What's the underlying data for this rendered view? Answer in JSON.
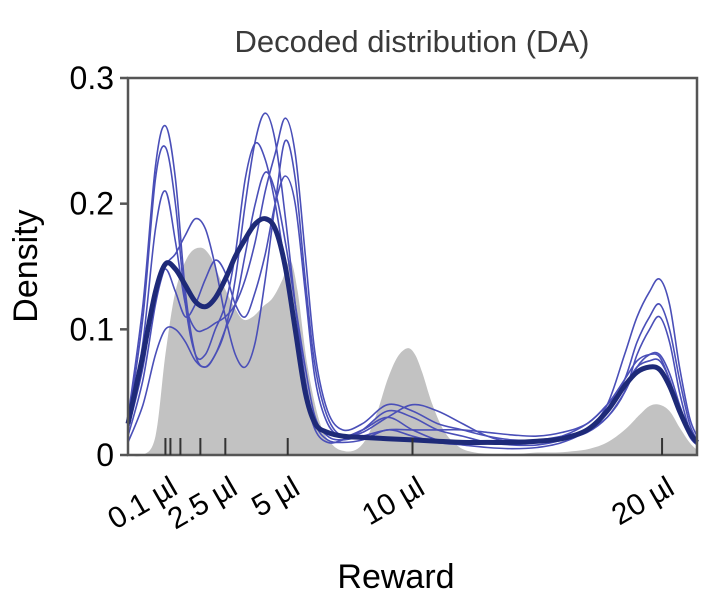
{
  "chart_data": {
    "type": "area",
    "title": "Decoded distribution (DA)",
    "xlabel": "Reward",
    "ylabel": "Density",
    "ylim": [
      0,
      0.3
    ],
    "yticks": [
      "0",
      "0.1",
      "0.2",
      "0.3"
    ],
    "xlim": [
      -1.4,
      21.4
    ],
    "xtick_labels": [
      {
        "label": "0.1 µl",
        "value": 0.1
      },
      {
        "label": "2.5 µl",
        "value": 2.5
      },
      {
        "label": "5 µl",
        "value": 5
      },
      {
        "label": "10 µl",
        "value": 10
      },
      {
        "label": "20 µl",
        "value": 20
      }
    ],
    "reward_ticks": [
      0.1,
      0.3,
      0.7,
      1.5,
      2.5,
      5,
      10,
      20
    ],
    "colors": {
      "reference_fill": "#c2c2c2",
      "thin_lines": "#4a4fb8",
      "mean_line": "#1e2a78",
      "axes": "#555555"
    },
    "series": [
      {
        "style": "reference-fill",
        "x": [
          -1.4,
          -0.8,
          -0.3,
          0.1,
          0.5,
          1.0,
          1.5,
          1.9,
          2.3,
          2.8,
          3.2,
          3.6,
          4.0,
          4.4,
          4.8,
          5.1,
          5.4,
          5.8,
          6.3,
          6.8,
          7.3,
          7.8,
          8.2,
          8.6,
          9.0,
          9.4,
          9.8,
          10.1,
          10.4,
          10.8,
          11.3,
          11.9,
          12.5,
          13.1,
          13.7,
          14.3,
          15.0,
          15.7,
          16.4,
          17.1,
          17.8,
          18.5,
          19.1,
          19.5,
          19.9,
          20.3,
          20.7,
          21.1,
          21.4
        ],
        "values": [
          0.0,
          0.0,
          0.015,
          0.08,
          0.13,
          0.158,
          0.165,
          0.158,
          0.14,
          0.12,
          0.108,
          0.11,
          0.118,
          0.125,
          0.14,
          0.155,
          0.13,
          0.07,
          0.025,
          0.008,
          0.003,
          0.005,
          0.015,
          0.035,
          0.06,
          0.078,
          0.085,
          0.08,
          0.065,
          0.04,
          0.018,
          0.006,
          0.002,
          0.001,
          0.001,
          0.001,
          0.002,
          0.002,
          0.003,
          0.005,
          0.01,
          0.02,
          0.032,
          0.039,
          0.04,
          0.035,
          0.022,
          0.01,
          0.004
        ]
      },
      {
        "style": "thin",
        "x": [
          -1.4,
          -0.8,
          -0.3,
          0.1,
          0.5,
          0.9,
          1.3,
          1.7,
          2.1,
          2.5,
          2.9,
          3.3,
          3.7,
          4.1,
          4.5,
          4.9,
          5.3,
          5.7,
          6.1,
          6.6,
          7.2,
          8.0,
          9.0,
          10.0,
          11.0,
          12.0,
          13.0,
          14.0,
          15.0,
          16.0,
          17.0,
          17.8,
          18.5,
          19.0,
          19.5,
          19.9,
          20.3,
          20.7,
          21.1,
          21.4
        ],
        "values": [
          0.03,
          0.12,
          0.23,
          0.262,
          0.22,
          0.13,
          0.08,
          0.07,
          0.08,
          0.1,
          0.14,
          0.2,
          0.25,
          0.272,
          0.25,
          0.19,
          0.12,
          0.06,
          0.025,
          0.012,
          0.01,
          0.012,
          0.02,
          0.015,
          0.01,
          0.008,
          0.006,
          0.005,
          0.006,
          0.01,
          0.02,
          0.04,
          0.08,
          0.11,
          0.13,
          0.14,
          0.12,
          0.07,
          0.03,
          0.015
        ]
      },
      {
        "style": "thin",
        "x": [
          -1.4,
          -0.8,
          -0.3,
          0.1,
          0.5,
          0.9,
          1.3,
          1.7,
          2.1,
          2.5,
          2.9,
          3.3,
          3.7,
          4.1,
          4.5,
          4.9,
          5.3,
          5.7,
          6.1,
          6.6,
          7.2,
          8.0,
          9.0,
          10.0,
          11.0,
          12.0,
          13.0,
          14.0,
          15.0,
          16.0,
          17.0,
          17.8,
          18.5,
          19.0,
          19.5,
          19.9,
          20.3,
          20.7,
          21.1,
          21.4
        ],
        "values": [
          0.025,
          0.11,
          0.22,
          0.245,
          0.2,
          0.12,
          0.08,
          0.08,
          0.1,
          0.12,
          0.16,
          0.22,
          0.248,
          0.235,
          0.2,
          0.15,
          0.1,
          0.05,
          0.02,
          0.01,
          0.012,
          0.02,
          0.035,
          0.03,
          0.02,
          0.015,
          0.01,
          0.008,
          0.008,
          0.012,
          0.02,
          0.035,
          0.06,
          0.09,
          0.11,
          0.12,
          0.1,
          0.06,
          0.025,
          0.012
        ]
      },
      {
        "style": "thin",
        "x": [
          -1.4,
          -0.8,
          -0.3,
          0.1,
          0.5,
          0.9,
          1.3,
          1.7,
          2.1,
          2.5,
          2.9,
          3.3,
          3.7,
          4.1,
          4.5,
          4.9,
          5.3,
          5.7,
          6.1,
          6.6,
          7.2,
          8.0,
          9.0,
          10.0,
          11.0,
          12.0,
          13.0,
          14.0,
          15.0,
          16.0,
          17.0,
          17.8,
          18.5,
          19.0,
          19.5,
          19.9,
          20.3,
          20.7,
          21.1,
          21.4
        ],
        "values": [
          0.02,
          0.09,
          0.18,
          0.21,
          0.17,
          0.12,
          0.1,
          0.1,
          0.105,
          0.11,
          0.12,
          0.14,
          0.17,
          0.21,
          0.24,
          0.268,
          0.24,
          0.16,
          0.08,
          0.035,
          0.02,
          0.025,
          0.04,
          0.035,
          0.025,
          0.02,
          0.015,
          0.012,
          0.012,
          0.015,
          0.02,
          0.03,
          0.05,
          0.08,
          0.1,
          0.11,
          0.09,
          0.05,
          0.02,
          0.01
        ]
      },
      {
        "style": "thin",
        "x": [
          -1.4,
          -0.8,
          -0.3,
          0.1,
          0.5,
          0.9,
          1.3,
          1.7,
          2.1,
          2.5,
          2.9,
          3.3,
          3.7,
          4.1,
          4.5,
          4.9,
          5.3,
          5.7,
          6.1,
          6.6,
          7.2,
          8.0,
          9.0,
          10.0,
          11.0,
          12.0,
          13.0,
          14.0,
          15.0,
          16.0,
          17.0,
          17.8,
          18.5,
          19.0,
          19.5,
          19.9,
          20.3,
          20.7,
          21.1,
          21.4
        ],
        "values": [
          0.015,
          0.06,
          0.12,
          0.15,
          0.16,
          0.175,
          0.188,
          0.18,
          0.15,
          0.11,
          0.08,
          0.07,
          0.09,
          0.14,
          0.2,
          0.25,
          0.22,
          0.14,
          0.07,
          0.03,
          0.015,
          0.018,
          0.03,
          0.04,
          0.035,
          0.025,
          0.015,
          0.01,
          0.01,
          0.012,
          0.018,
          0.03,
          0.05,
          0.07,
          0.08,
          0.08,
          0.065,
          0.04,
          0.018,
          0.008
        ]
      },
      {
        "style": "thin",
        "x": [
          -1.4,
          -0.8,
          -0.3,
          0.1,
          0.5,
          0.9,
          1.3,
          1.7,
          2.1,
          2.5,
          2.9,
          3.3,
          3.7,
          4.1,
          4.5,
          4.9,
          5.3,
          5.7,
          6.1,
          6.6,
          7.2,
          8.0,
          9.0,
          10.0,
          11.0,
          12.0,
          13.0,
          14.0,
          15.0,
          16.0,
          17.0,
          17.8,
          18.5,
          19.0,
          19.5,
          19.9,
          20.3,
          20.7,
          21.1,
          21.4
        ],
        "values": [
          0.02,
          0.07,
          0.13,
          0.148,
          0.13,
          0.11,
          0.12,
          0.14,
          0.155,
          0.145,
          0.12,
          0.11,
          0.13,
          0.16,
          0.2,
          0.222,
          0.2,
          0.13,
          0.06,
          0.025,
          0.015,
          0.02,
          0.03,
          0.02,
          0.012,
          0.01,
          0.01,
          0.01,
          0.01,
          0.015,
          0.025,
          0.04,
          0.06,
          0.075,
          0.08,
          0.078,
          0.06,
          0.035,
          0.015,
          0.008
        ]
      },
      {
        "style": "thin",
        "x": [
          -1.4,
          -0.8,
          -0.3,
          0.1,
          0.5,
          0.9,
          1.3,
          1.7,
          2.1,
          2.5,
          2.9,
          3.3,
          3.7,
          4.1,
          4.5,
          4.9,
          5.3,
          5.7,
          6.1,
          6.6,
          7.2,
          8.0,
          9.0,
          10.0,
          11.0,
          12.0,
          13.0,
          14.0,
          15.0,
          16.0,
          17.0,
          17.8,
          18.5,
          19.0,
          19.5,
          19.9,
          20.3,
          20.7,
          21.1,
          21.4
        ],
        "values": [
          0.01,
          0.04,
          0.08,
          0.1,
          0.1,
          0.09,
          0.075,
          0.07,
          0.08,
          0.1,
          0.12,
          0.16,
          0.2,
          0.225,
          0.21,
          0.17,
          0.12,
          0.07,
          0.03,
          0.015,
          0.012,
          0.015,
          0.02,
          0.02,
          0.02,
          0.02,
          0.018,
          0.016,
          0.015,
          0.018,
          0.025,
          0.04,
          0.055,
          0.07,
          0.075,
          0.075,
          0.06,
          0.035,
          0.015,
          0.008
        ]
      },
      {
        "style": "mean",
        "x": [
          -1.4,
          -0.8,
          -0.3,
          0.1,
          0.5,
          0.9,
          1.3,
          1.7,
          2.1,
          2.5,
          2.9,
          3.3,
          3.7,
          4.1,
          4.5,
          4.9,
          5.3,
          5.7,
          6.1,
          6.6,
          7.2,
          8.0,
          9.0,
          10.0,
          11.0,
          12.0,
          13.0,
          14.0,
          15.0,
          16.0,
          17.0,
          17.8,
          18.5,
          19.0,
          19.5,
          19.9,
          20.3,
          20.7,
          21.1,
          21.4
        ],
        "values": [
          0.025,
          0.08,
          0.13,
          0.152,
          0.148,
          0.135,
          0.122,
          0.118,
          0.125,
          0.14,
          0.158,
          0.172,
          0.184,
          0.188,
          0.18,
          0.15,
          0.1,
          0.05,
          0.025,
          0.018,
          0.015,
          0.014,
          0.013,
          0.012,
          0.011,
          0.01,
          0.01,
          0.01,
          0.011,
          0.013,
          0.02,
          0.035,
          0.055,
          0.066,
          0.07,
          0.068,
          0.055,
          0.035,
          0.018,
          0.01
        ]
      }
    ]
  }
}
